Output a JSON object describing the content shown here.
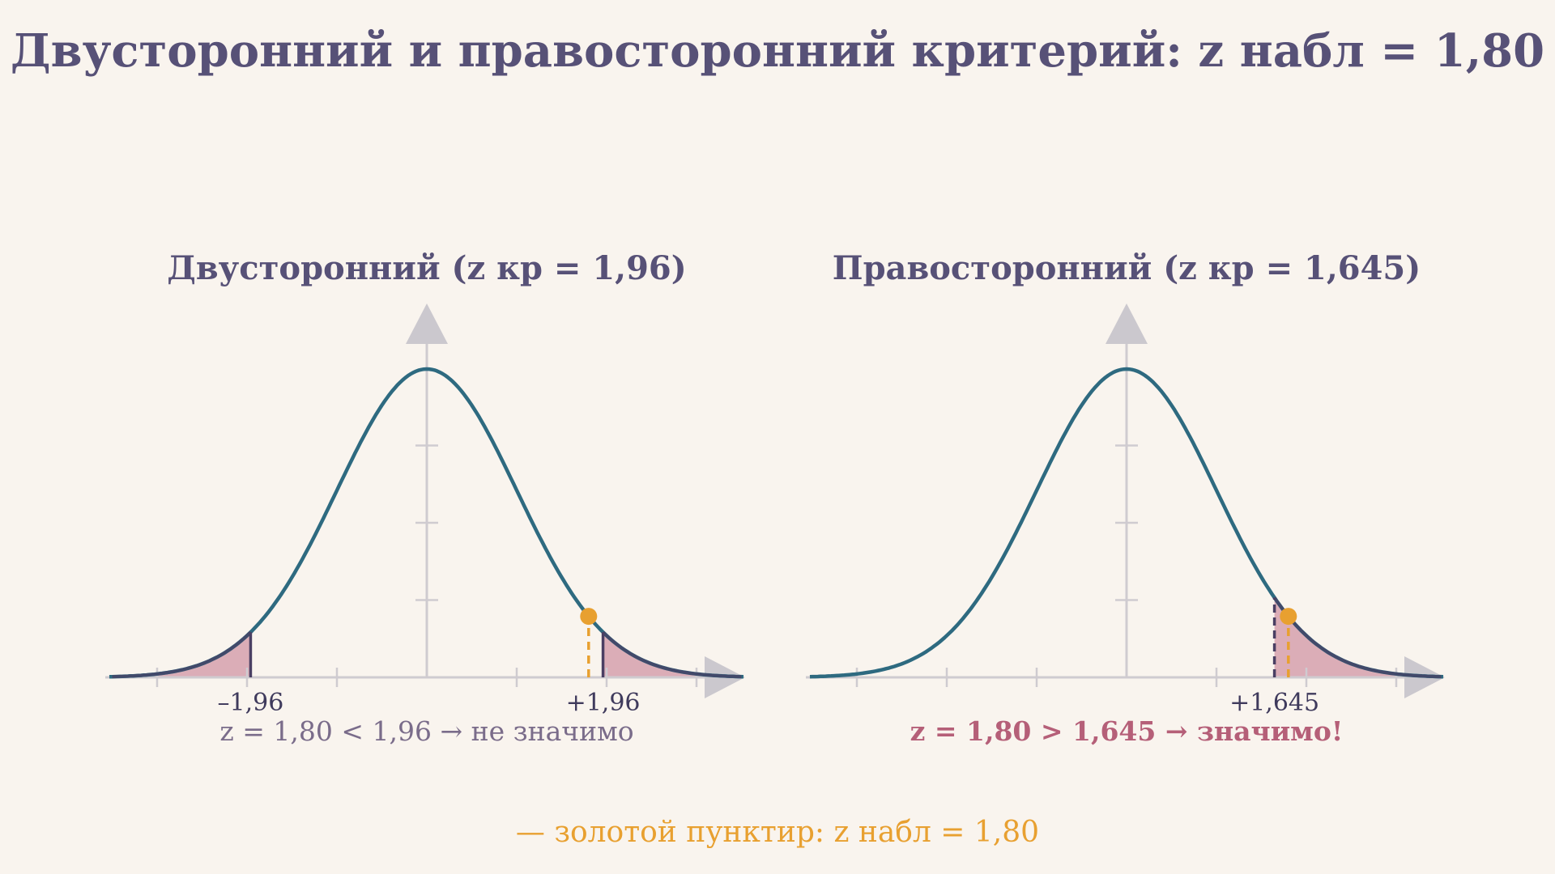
{
  "page": {
    "title": "Двусторонний и правосторонний критерий: z набл = 1,80",
    "legend_note": "— золотой пунктир: z набл = 1,80"
  },
  "colors": {
    "background": "#f9f4ee",
    "title": "#575177",
    "curve": "#2e6a80",
    "region_fill": "#c67d93",
    "region_edge": "#4a3f63",
    "axis": "#cfcbd0",
    "observed": "#e8a030",
    "verdict_left": "#7a6c8a",
    "verdict_right": "#b55f78"
  },
  "chart_data": [
    {
      "type": "area",
      "distribution": "standard normal",
      "title": "Двусторонний  (z кр = 1,96)",
      "xlim": [
        -3.5,
        3.5
      ],
      "ylim": [
        0,
        0.4
      ],
      "x_ticks": [
        -3,
        -2,
        -1,
        0,
        1,
        2,
        3
      ],
      "y_ticks": [
        0.1,
        0.2,
        0.3
      ],
      "critical_values": [
        -1.96,
        1.96
      ],
      "critical_labels": [
        "–1,96",
        "+1,96"
      ],
      "rejection_regions": [
        [
          -3.5,
          -1.96
        ],
        [
          1.96,
          3.5
        ]
      ],
      "z_observed": 1.8,
      "verdict": "z = 1,80 < 1,96 → не значимо",
      "significant": false
    },
    {
      "type": "area",
      "distribution": "standard normal",
      "title": "Правосторонний  (z кр = 1,645)",
      "xlim": [
        -3.5,
        3.5
      ],
      "ylim": [
        0,
        0.4
      ],
      "x_ticks": [
        -3,
        -2,
        -1,
        0,
        1,
        2,
        3
      ],
      "y_ticks": [
        0.1,
        0.2,
        0.3
      ],
      "critical_values": [
        1.645
      ],
      "critical_labels": [
        "+1,645"
      ],
      "rejection_regions": [
        [
          1.645,
          3.5
        ]
      ],
      "z_observed": 1.8,
      "verdict": "z = 1,80 > 1,645 → значимо!",
      "significant": true
    }
  ]
}
